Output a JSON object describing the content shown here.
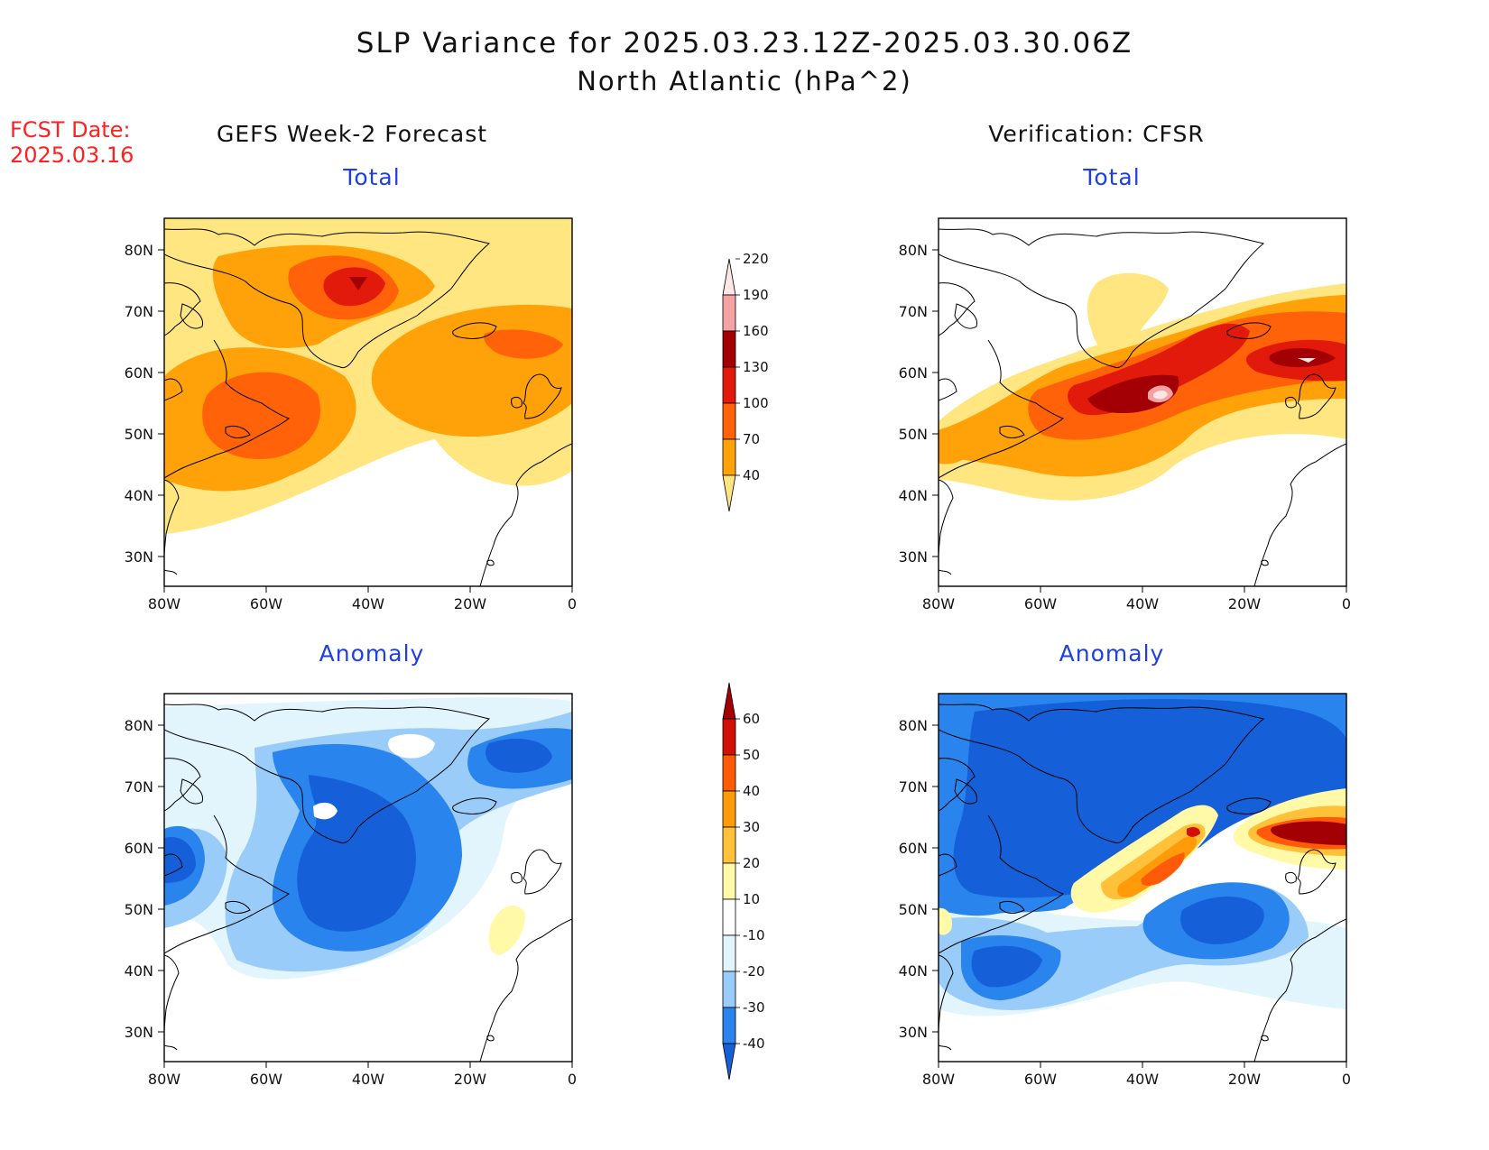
{
  "title_line1": "SLP Variance for 2025.03.23.12Z-2025.03.30.06Z",
  "title_line2": "North Atlantic (hPa^2)",
  "fcst_label": "FCST Date:",
  "fcst_date": "2025.03.16",
  "left_column_title": "GEFS Week-2 Forecast",
  "right_column_title": "Verification: CFSR",
  "total_label": "Total",
  "anomaly_label": "Anomaly",
  "lat_ticks": [
    "80N",
    "70N",
    "60N",
    "50N",
    "40N",
    "30N"
  ],
  "lon_ticks": [
    "80W",
    "60W",
    "40W",
    "20W",
    "0"
  ],
  "total_colorbar": {
    "levels": [
      "40",
      "70",
      "100",
      "130",
      "160",
      "190",
      "220"
    ],
    "colors": [
      "#ffe680",
      "#ffa20a",
      "#ff6208",
      "#e21a0c",
      "#a20005",
      "#f4a2a4",
      "#fde6e6"
    ]
  },
  "anomaly_colorbar": {
    "levels": [
      "-40",
      "-30",
      "-20",
      "-10",
      "10",
      "20",
      "30",
      "40",
      "50",
      "60"
    ],
    "colors": [
      "#1560d8",
      "#2a84ee",
      "#99ccf8",
      "#e2f5fd",
      "#ffffff",
      "#fff9a8",
      "#ffc03a",
      "#ff9a08",
      "#ff5a08",
      "#d21008",
      "#a20005"
    ]
  },
  "colors": {
    "fcst_text": "#ff2020",
    "subtitle_text": "#1f3fe0",
    "coast": "#000000"
  }
}
